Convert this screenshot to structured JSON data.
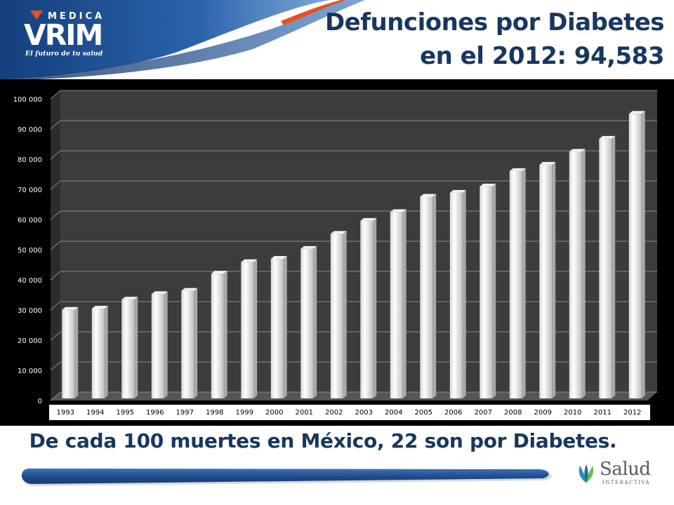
{
  "header": {
    "title_line1": "Defunciones por Diabetes",
    "title_line2": "en el 2012: 94,583",
    "logo": {
      "top": "MEDICA",
      "main": "VRIM",
      "tagline": "El futuro de tu salud"
    }
  },
  "footer": {
    "caption": "De cada 100 muertes en México, 22 son por Diabetes.",
    "logo_word": "Salud",
    "logo_sub": "INTERACTIVA"
  },
  "colors": {
    "title": "#17375e",
    "chart_bg": "#000000",
    "plot_bg": "#3a3a3a",
    "bar": "#ffffff",
    "header_blue": "#1f4e8c",
    "accent_orange": "#e8511c"
  },
  "chart_data": {
    "type": "bar",
    "style": "3d-columns",
    "categories": [
      "1993",
      "1994",
      "1995",
      "1996",
      "1997",
      "1998",
      "1999",
      "2000",
      "2001",
      "2002",
      "2003",
      "2004",
      "2005",
      "2006",
      "2007",
      "2008",
      "2009",
      "2010",
      "2011",
      "2012"
    ],
    "values": [
      29600,
      30000,
      33000,
      34800,
      35900,
      41600,
      45400,
      46500,
      49800,
      54800,
      59100,
      62000,
      67100,
      68400,
      70500,
      75600,
      77700,
      82000,
      86300,
      94583
    ],
    "ylim": [
      0,
      100000
    ],
    "yticks": [
      0,
      10000,
      20000,
      30000,
      40000,
      50000,
      60000,
      70000,
      80000,
      90000,
      100000
    ],
    "ytick_labels": [
      "0",
      "10 000",
      "20 000",
      "30 000",
      "40 000",
      "50 000",
      "60 000",
      "70 000",
      "80 000",
      "90 000",
      "100 000"
    ],
    "grid": true,
    "legend": false,
    "title": "",
    "xlabel": "",
    "ylabel": ""
  }
}
